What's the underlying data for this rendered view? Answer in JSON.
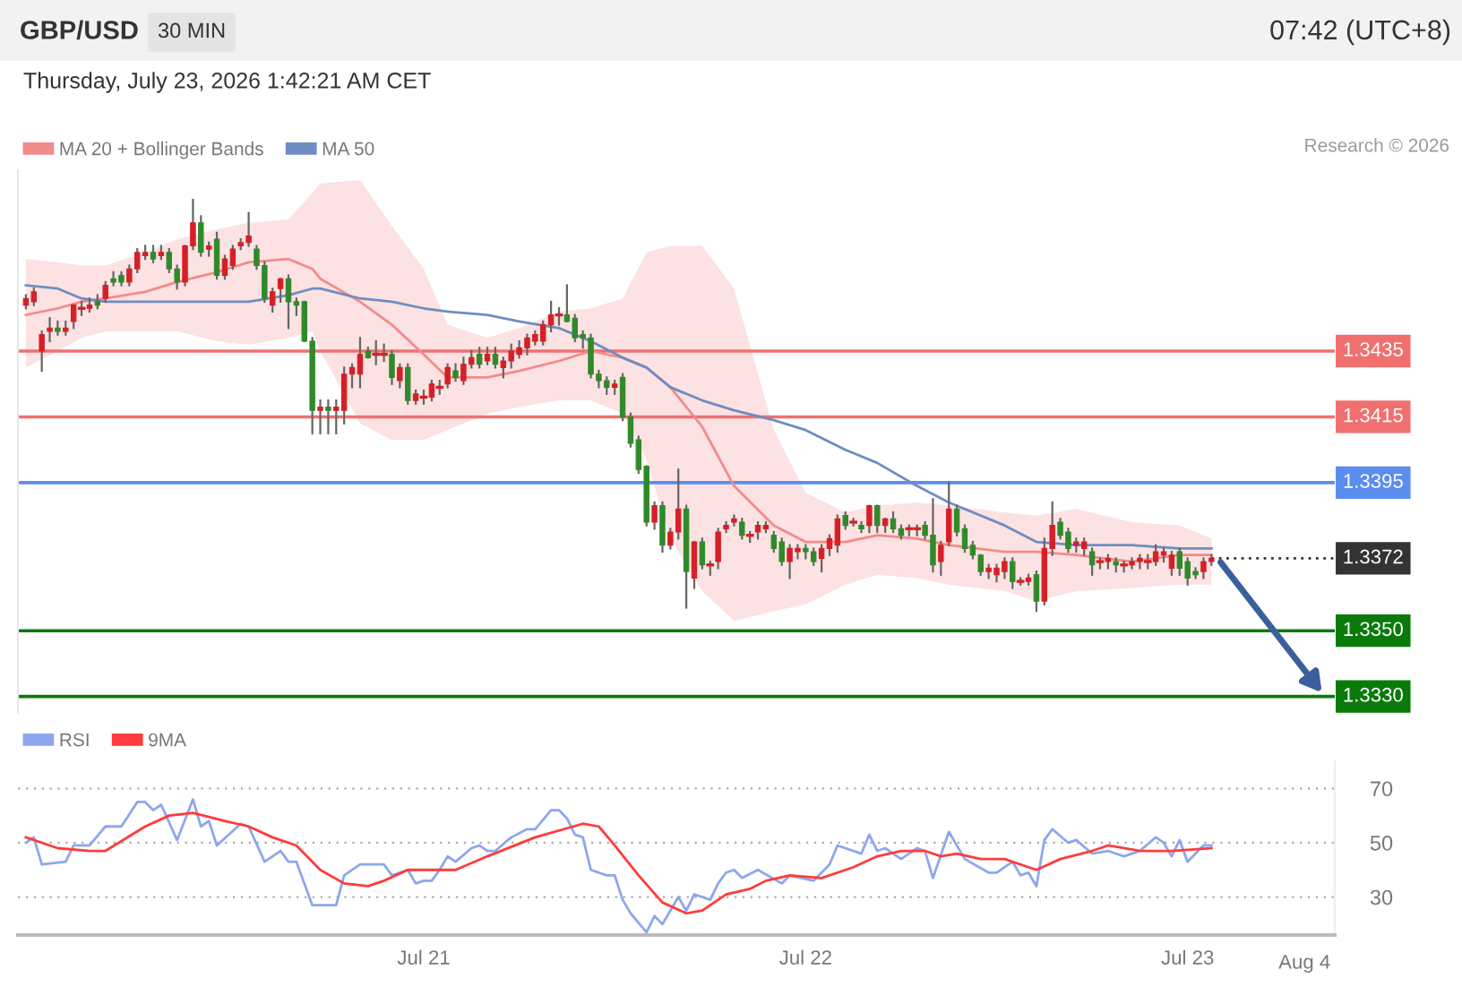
{
  "chart_data": [
    {
      "type": "candlestick",
      "title": "GBP/USD",
      "subtitle": "Thursday, July 23, 2026 1:42:21 AM CET",
      "annotations": [
        "30 MIN",
        "07:42 (UTC+8)",
        "Research © 2026"
      ],
      "x": [
        "2026-07-19T23:00",
        "2026-07-19T23:30",
        "2026-07-20T00:00",
        "2026-07-20T00:30",
        "2026-07-20T01:00",
        "2026-07-20T01:30",
        "2026-07-20T02:00",
        "2026-07-20T02:30",
        "2026-07-20T03:00",
        "2026-07-20T03:30",
        "2026-07-20T04:00",
        "2026-07-20T04:30",
        "2026-07-20T05:00",
        "2026-07-20T05:30",
        "2026-07-20T06:00",
        "2026-07-20T06:30",
        "2026-07-20T07:00",
        "2026-07-20T07:30",
        "2026-07-20T08:00",
        "2026-07-20T08:30",
        "2026-07-20T09:00",
        "2026-07-20T09:30",
        "2026-07-20T10:00",
        "2026-07-20T10:30",
        "2026-07-20T11:00",
        "2026-07-20T11:30",
        "2026-07-20T12:00",
        "2026-07-20T12:30",
        "2026-07-20T13:00",
        "2026-07-20T13:30",
        "2026-07-20T14:00",
        "2026-07-20T14:30",
        "2026-07-20T15:00",
        "2026-07-20T15:30",
        "2026-07-20T16:00",
        "2026-07-20T16:30",
        "2026-07-20T17:00",
        "2026-07-20T17:30",
        "2026-07-20T18:00",
        "2026-07-20T18:30",
        "2026-07-20T19:00",
        "2026-07-20T19:30",
        "2026-07-20T20:00",
        "2026-07-20T20:30",
        "2026-07-20T21:00",
        "2026-07-20T21:30",
        "2026-07-20T22:00",
        "2026-07-20T22:30",
        "2026-07-20T23:00",
        "2026-07-20T23:30",
        "2026-07-21T00:00",
        "2026-07-21T00:30",
        "2026-07-21T01:00",
        "2026-07-21T01:30",
        "2026-07-21T02:00",
        "2026-07-21T02:30",
        "2026-07-21T03:00",
        "2026-07-21T03:30",
        "2026-07-21T04:00",
        "2026-07-21T04:30",
        "2026-07-21T05:00",
        "2026-07-21T05:30",
        "2026-07-21T06:00",
        "2026-07-21T06:30",
        "2026-07-21T07:00",
        "2026-07-21T07:30",
        "2026-07-21T08:00",
        "2026-07-21T08:30",
        "2026-07-21T09:00",
        "2026-07-21T09:30",
        "2026-07-21T10:00",
        "2026-07-21T10:30",
        "2026-07-21T11:00",
        "2026-07-21T11:30",
        "2026-07-21T12:00",
        "2026-07-21T12:30",
        "2026-07-21T13:00",
        "2026-07-21T13:30",
        "2026-07-21T14:00",
        "2026-07-21T14:30",
        "2026-07-21T15:00",
        "2026-07-21T15:30",
        "2026-07-21T16:00",
        "2026-07-21T16:30",
        "2026-07-21T17:00",
        "2026-07-21T17:30",
        "2026-07-21T18:00",
        "2026-07-21T18:30",
        "2026-07-21T19:00",
        "2026-07-21T19:30",
        "2026-07-21T20:00",
        "2026-07-21T20:30",
        "2026-07-21T21:00",
        "2026-07-21T21:30",
        "2026-07-21T22:00",
        "2026-07-21T22:30",
        "2026-07-21T23:00",
        "2026-07-21T23:30",
        "2026-07-22T00:00",
        "2026-07-22T00:30",
        "2026-07-22T01:00",
        "2026-07-22T01:30",
        "2026-07-22T02:00",
        "2026-07-22T02:30",
        "2026-07-22T03:00",
        "2026-07-22T03:30",
        "2026-07-22T04:00",
        "2026-07-22T04:30",
        "2026-07-22T05:00",
        "2026-07-22T05:30",
        "2026-07-22T06:00",
        "2026-07-22T06:30",
        "2026-07-22T07:00",
        "2026-07-22T07:30",
        "2026-07-22T08:00",
        "2026-07-22T08:30",
        "2026-07-22T09:00",
        "2026-07-22T09:30",
        "2026-07-22T10:00",
        "2026-07-22T10:30",
        "2026-07-22T11:00",
        "2026-07-22T11:30",
        "2026-07-22T12:00",
        "2026-07-22T12:30",
        "2026-07-22T13:00",
        "2026-07-22T13:30",
        "2026-07-22T14:00",
        "2026-07-22T14:30",
        "2026-07-22T15:00",
        "2026-07-22T15:30",
        "2026-07-22T16:00",
        "2026-07-22T16:30",
        "2026-07-22T17:00",
        "2026-07-22T17:30",
        "2026-07-22T18:00",
        "2026-07-22T18:30",
        "2026-07-22T19:00",
        "2026-07-22T19:30",
        "2026-07-22T20:00",
        "2026-07-22T20:30",
        "2026-07-22T21:00",
        "2026-07-22T21:30",
        "2026-07-22T22:00",
        "2026-07-22T22:30",
        "2026-07-22T23:00",
        "2026-07-22T23:30",
        "2026-07-23T00:00",
        "2026-07-23T00:30",
        "2026-07-23T01:00",
        "2026-07-23T01:30"
      ],
      "ohlc": [
        [
          1.3449,
          1.3452,
          1.3448,
          1.3451
        ],
        [
          1.345,
          1.3454,
          1.3449,
          1.3453
        ],
        [
          1.3435,
          1.3441,
          1.3429,
          1.344
        ],
        [
          1.3441,
          1.3445,
          1.3438,
          1.3442
        ],
        [
          1.3442,
          1.3444,
          1.344,
          1.3441
        ],
        [
          1.3441,
          1.3444,
          1.344,
          1.3442
        ],
        [
          1.3444,
          1.3449,
          1.3442,
          1.3449
        ],
        [
          1.3448,
          1.345,
          1.3446,
          1.3448
        ],
        [
          1.3448,
          1.3451,
          1.3447,
          1.3449
        ],
        [
          1.345,
          1.3452,
          1.3448,
          1.3449
        ],
        [
          1.3451,
          1.3456,
          1.345,
          1.3455
        ],
        [
          1.3457,
          1.3459,
          1.3455,
          1.3456
        ],
        [
          1.3458,
          1.3459,
          1.3455,
          1.3456
        ],
        [
          1.3456,
          1.3461,
          1.3455,
          1.346
        ],
        [
          1.346,
          1.3466,
          1.3459,
          1.3465
        ],
        [
          1.3464,
          1.3467,
          1.3463,
          1.3465
        ],
        [
          1.3465,
          1.3467,
          1.3462,
          1.3463
        ],
        [
          1.3464,
          1.3467,
          1.3463,
          1.3465
        ],
        [
          1.3465,
          1.3466,
          1.3459,
          1.346
        ],
        [
          1.346,
          1.3461,
          1.3454,
          1.3456
        ],
        [
          1.3456,
          1.3467,
          1.3455,
          1.3467
        ],
        [
          1.3467,
          1.3481,
          1.3466,
          1.3474
        ],
        [
          1.3474,
          1.3476,
          1.3464,
          1.3465
        ],
        [
          1.3466,
          1.3468,
          1.3464,
          1.3467
        ],
        [
          1.3469,
          1.3471,
          1.3457,
          1.3458
        ],
        [
          1.3458,
          1.3464,
          1.3457,
          1.3463
        ],
        [
          1.3461,
          1.3467,
          1.346,
          1.3466
        ],
        [
          1.3467,
          1.3469,
          1.3466,
          1.3468
        ],
        [
          1.3468,
          1.3477,
          1.3467,
          1.347
        ],
        [
          1.3466,
          1.3467,
          1.346,
          1.3461
        ],
        [
          1.3461,
          1.3462,
          1.345,
          1.3451
        ],
        [
          1.3449,
          1.3454,
          1.3447,
          1.3453
        ],
        [
          1.3454,
          1.3457,
          1.345,
          1.3457
        ],
        [
          1.3457,
          1.3458,
          1.3442,
          1.345
        ],
        [
          1.345,
          1.3451,
          1.3446,
          1.3449
        ],
        [
          1.345,
          1.345,
          1.3438,
          1.3438
        ],
        [
          1.3438,
          1.3439,
          1.341,
          1.3417
        ],
        [
          1.3417,
          1.342,
          1.341,
          1.3418
        ],
        [
          1.3418,
          1.342,
          1.341,
          1.3417
        ],
        [
          1.3417,
          1.342,
          1.341,
          1.3418
        ],
        [
          1.3417,
          1.343,
          1.3413,
          1.3428
        ],
        [
          1.3428,
          1.3431,
          1.3424,
          1.343
        ],
        [
          1.3428,
          1.3439,
          1.3424,
          1.3434
        ],
        [
          1.3435,
          1.3436,
          1.3433,
          1.3433
        ],
        [
          1.3434,
          1.3438,
          1.3431,
          1.3434
        ],
        [
          1.3434,
          1.3437,
          1.3432,
          1.3434
        ],
        [
          1.3434,
          1.3435,
          1.3425,
          1.3427
        ],
        [
          1.3426,
          1.3431,
          1.3424,
          1.343
        ],
        [
          1.343,
          1.3431,
          1.3419,
          1.342
        ],
        [
          1.342,
          1.3423,
          1.3419,
          1.3422
        ],
        [
          1.3421,
          1.3423,
          1.3419,
          1.3421
        ],
        [
          1.3421,
          1.3426,
          1.342,
          1.3425
        ],
        [
          1.3424,
          1.3426,
          1.3422,
          1.3424
        ],
        [
          1.3425,
          1.3431,
          1.3424,
          1.343
        ],
        [
          1.3429,
          1.3431,
          1.3426,
          1.3427
        ],
        [
          1.3426,
          1.3433,
          1.3425,
          1.3431
        ],
        [
          1.3431,
          1.3435,
          1.343,
          1.3433
        ],
        [
          1.3434,
          1.3436,
          1.343,
          1.3431
        ],
        [
          1.3432,
          1.3436,
          1.3431,
          1.3434
        ],
        [
          1.3434,
          1.3436,
          1.343,
          1.3431
        ],
        [
          1.343,
          1.3433,
          1.3427,
          1.3432
        ],
        [
          1.3432,
          1.3437,
          1.343,
          1.3435
        ],
        [
          1.3434,
          1.3438,
          1.3433,
          1.3436
        ],
        [
          1.3436,
          1.344,
          1.3434,
          1.3439
        ],
        [
          1.3438,
          1.3441,
          1.3437,
          1.344
        ],
        [
          1.3438,
          1.3444,
          1.3437,
          1.3443
        ],
        [
          1.3443,
          1.345,
          1.3441,
          1.3446
        ],
        [
          1.3446,
          1.3448,
          1.3443,
          1.3446
        ],
        [
          1.3446,
          1.3455,
          1.3444,
          1.3444
        ],
        [
          1.3445,
          1.3446,
          1.3438,
          1.3439
        ],
        [
          1.344,
          1.3441,
          1.3436,
          1.3439
        ],
        [
          1.3439,
          1.344,
          1.3427,
          1.3428
        ],
        [
          1.3428,
          1.3429,
          1.3424,
          1.3426
        ],
        [
          1.3426,
          1.3427,
          1.3422,
          1.3424
        ],
        [
          1.3424,
          1.3426,
          1.3422,
          1.3425
        ],
        [
          1.3427,
          1.3428,
          1.3414,
          1.3415
        ],
        [
          1.3415,
          1.3416,
          1.3406,
          1.3407
        ],
        [
          1.3408,
          1.3409,
          1.3398,
          1.3399
        ],
        [
          1.34,
          1.34,
          1.3382,
          1.3383
        ],
        [
          1.3383,
          1.3389,
          1.3381,
          1.3388
        ],
        [
          1.3388,
          1.3389,
          1.3374,
          1.3376
        ],
        [
          1.3376,
          1.3381,
          1.3375,
          1.338
        ],
        [
          1.338,
          1.3399,
          1.3378,
          1.3387
        ],
        [
          1.3387,
          1.3388,
          1.3357,
          1.3368
        ],
        [
          1.3366,
          1.3377,
          1.3363,
          1.3377
        ],
        [
          1.3377,
          1.3378,
          1.3369,
          1.337
        ],
        [
          1.337,
          1.3371,
          1.3367,
          1.337
        ],
        [
          1.3371,
          1.3381,
          1.3369,
          1.338
        ],
        [
          1.3381,
          1.3383,
          1.338,
          1.3382
        ],
        [
          1.3383,
          1.3385,
          1.3382,
          1.3384
        ],
        [
          1.3383,
          1.3384,
          1.3378,
          1.3379
        ],
        [
          1.3379,
          1.338,
          1.3377,
          1.3379
        ],
        [
          1.338,
          1.3383,
          1.3378,
          1.3382
        ],
        [
          1.3381,
          1.3383,
          1.338,
          1.3382
        ],
        [
          1.3379,
          1.338,
          1.3374,
          1.3375
        ],
        [
          1.3377,
          1.3378,
          1.337,
          1.3371
        ],
        [
          1.3371,
          1.3376,
          1.3366,
          1.3375
        ],
        [
          1.3374,
          1.3376,
          1.3372,
          1.3375
        ],
        [
          1.3375,
          1.3376,
          1.3372,
          1.3374
        ],
        [
          1.3374,
          1.3375,
          1.337,
          1.3371
        ],
        [
          1.3372,
          1.3376,
          1.3368,
          1.3375
        ],
        [
          1.3375,
          1.3379,
          1.3373,
          1.3378
        ],
        [
          1.3376,
          1.3385,
          1.3374,
          1.3384
        ],
        [
          1.3385,
          1.3386,
          1.3381,
          1.3382
        ],
        [
          1.3383,
          1.3384,
          1.3382,
          1.3383
        ],
        [
          1.3382,
          1.3383,
          1.338,
          1.3381
        ],
        [
          1.3382,
          1.3388,
          1.338,
          1.3388
        ],
        [
          1.3388,
          1.3388,
          1.338,
          1.3382
        ],
        [
          1.3382,
          1.3384,
          1.338,
          1.3384
        ],
        [
          1.3384,
          1.3386,
          1.338,
          1.3381
        ],
        [
          1.3381,
          1.3382,
          1.3378,
          1.3379
        ],
        [
          1.3381,
          1.3382,
          1.3379,
          1.3381
        ],
        [
          1.3381,
          1.3382,
          1.3379,
          1.3381
        ],
        [
          1.3382,
          1.3383,
          1.3378,
          1.3379
        ],
        [
          1.3379,
          1.339,
          1.3368,
          1.337
        ],
        [
          1.3371,
          1.3377,
          1.3367,
          1.3376
        ],
        [
          1.3377,
          1.3395,
          1.3376,
          1.3387
        ],
        [
          1.3387,
          1.3388,
          1.3379,
          1.338
        ],
        [
          1.3381,
          1.3382,
          1.3374,
          1.3375
        ],
        [
          1.3376,
          1.3377,
          1.3372,
          1.3373
        ],
        [
          1.3373,
          1.3373,
          1.3367,
          1.3368
        ],
        [
          1.3368,
          1.337,
          1.3366,
          1.3369
        ],
        [
          1.3367,
          1.337,
          1.3365,
          1.3369
        ],
        [
          1.3368,
          1.3372,
          1.3366,
          1.3371
        ],
        [
          1.3371,
          1.3372,
          1.3363,
          1.3365
        ],
        [
          1.3365,
          1.3366,
          1.3364,
          1.3365
        ],
        [
          1.3365,
          1.3367,
          1.3364,
          1.3366
        ],
        [
          1.3367,
          1.3368,
          1.3356,
          1.3359
        ],
        [
          1.3359,
          1.3378,
          1.3358,
          1.3375
        ],
        [
          1.3375,
          1.3389,
          1.3373,
          1.3382
        ],
        [
          1.3383,
          1.3384,
          1.3378,
          1.3379
        ],
        [
          1.338,
          1.3381,
          1.3374,
          1.3375
        ],
        [
          1.3376,
          1.3378,
          1.3374,
          1.3377
        ],
        [
          1.3375,
          1.3378,
          1.3373,
          1.3377
        ],
        [
          1.3374,
          1.3375,
          1.3367,
          1.337
        ],
        [
          1.3371,
          1.3372,
          1.3369,
          1.3371
        ],
        [
          1.3371,
          1.3373,
          1.3369,
          1.3372
        ],
        [
          1.3371,
          1.3372,
          1.3368,
          1.337
        ],
        [
          1.337,
          1.3371,
          1.3368,
          1.337
        ],
        [
          1.337,
          1.3372,
          1.3369,
          1.3371
        ],
        [
          1.3371,
          1.3373,
          1.3369,
          1.3372
        ],
        [
          1.3371,
          1.3373,
          1.3369,
          1.3371
        ],
        [
          1.3371,
          1.3376,
          1.337,
          1.3374
        ],
        [
          1.3373,
          1.3375,
          1.3371,
          1.3374
        ],
        [
          1.3369,
          1.3374,
          1.3367,
          1.3373
        ],
        [
          1.3374,
          1.3375,
          1.3367,
          1.3369
        ],
        [
          1.3371,
          1.3372,
          1.3364,
          1.3366
        ],
        [
          1.3368,
          1.3369,
          1.3366,
          1.3367
        ],
        [
          1.3368,
          1.3372,
          1.3366,
          1.3371
        ],
        [
          1.3371,
          1.3373,
          1.337,
          1.3372
        ]
      ],
      "colors": [
        "#d61f26",
        "#d61f26",
        "#d61f26",
        "#d61f26",
        "#2f8a2a",
        "#d61f26",
        "#d61f26",
        "#d61f26",
        "#d61f26",
        "#2f8a2a",
        "#d61f26",
        "#2f8a2a",
        "#2f8a2a",
        "#d61f26",
        "#d61f26",
        "#d61f26",
        "#2f8a2a",
        "#d61f26",
        "#2f8a2a",
        "#2f8a2a",
        "#d61f26",
        "#d61f26",
        "#2f8a2a",
        "#d61f26",
        "#2f8a2a",
        "#d61f26",
        "#d61f26",
        "#d61f26",
        "#d61f26",
        "#2f8a2a",
        "#2f8a2a",
        "#d61f26",
        "#d61f26",
        "#2f8a2a",
        "#2f8a2a",
        "#2f8a2a",
        "#2f8a2a",
        "#d61f26",
        "#2f8a2a",
        "#d61f26",
        "#d61f26",
        "#d61f26",
        "#d61f26",
        "#2f8a2a",
        "#d61f26",
        "#d61f26",
        "#2f8a2a",
        "#d61f26",
        "#2f8a2a",
        "#d61f26",
        "#d61f26",
        "#d61f26",
        "#d61f26",
        "#d61f26",
        "#2f8a2a",
        "#d61f26",
        "#d61f26",
        "#2f8a2a",
        "#d61f26",
        "#2f8a2a",
        "#d61f26",
        "#d61f26",
        "#d61f26",
        "#d61f26",
        "#d61f26",
        "#d61f26",
        "#d61f26",
        "#d61f26",
        "#2f8a2a",
        "#2f8a2a",
        "#2f8a2a",
        "#2f8a2a",
        "#2f8a2a",
        "#2f8a2a",
        "#d61f26",
        "#2f8a2a",
        "#2f8a2a",
        "#2f8a2a",
        "#2f8a2a",
        "#d61f26",
        "#2f8a2a",
        "#d61f26",
        "#d61f26",
        "#2f8a2a",
        "#d61f26",
        "#2f8a2a",
        "#d61f26",
        "#d61f26",
        "#d61f26",
        "#d61f26",
        "#2f8a2a",
        "#d61f26",
        "#d61f26",
        "#d61f26",
        "#2f8a2a",
        "#2f8a2a",
        "#d61f26",
        "#d61f26",
        "#2f8a2a",
        "#2f8a2a",
        "#d61f26",
        "#d61f26",
        "#d61f26",
        "#2f8a2a",
        "#d61f26",
        "#2f8a2a",
        "#d61f26",
        "#2f8a2a",
        "#d61f26",
        "#2f8a2a",
        "#2f8a2a",
        "#d61f26",
        "#d61f26",
        "#2f8a2a",
        "#2f8a2a",
        "#d61f26",
        "#d61f26",
        "#2f8a2a",
        "#2f8a2a",
        "#2f8a2a",
        "#2f8a2a",
        "#d61f26",
        "#d61f26",
        "#d61f26",
        "#2f8a2a",
        "#d61f26",
        "#d61f26",
        "#2f8a2a",
        "#d61f26",
        "#d61f26",
        "#2f8a2a",
        "#2f8a2a",
        "#d61f26",
        "#d61f26",
        "#2f8a2a",
        "#d61f26",
        "#d61f26",
        "#2f8a2a",
        "#d61f26",
        "#d61f26",
        "#d61f26",
        "#d61f26",
        "#d61f26",
        "#d61f26",
        "#d61f26",
        "#2f8a2a",
        "#2f8a2a",
        "#2f8a2a",
        "#d61f26",
        "#d61f26"
      ],
      "series": [
        {
          "name": "MA 20 + Bollinger Bands",
          "type": "line",
          "color": "#f28b8b",
          "x": [
            "2026-07-19T23:00",
            "2026-07-20T01:00",
            "2026-07-20T02:30",
            "2026-07-20T04:00",
            "2026-07-20T06:30",
            "2026-07-20T08:30",
            "2026-07-20T11:00",
            "2026-07-20T13:00",
            "2026-07-20T15:30",
            "2026-07-20T17:00",
            "2026-07-20T17:30",
            "2026-07-20T20:00",
            "2026-07-20T22:00",
            "2026-07-21T00:00",
            "2026-07-21T01:30",
            "2026-07-21T04:00",
            "2026-07-21T06:00",
            "2026-07-21T08:30",
            "2026-07-21T10:30",
            "2026-07-21T12:30",
            "2026-07-21T14:00",
            "2026-07-21T15:30",
            "2026-07-21T17:30",
            "2026-07-21T19:30",
            "2026-07-21T22:00",
            "2026-07-22T00:00",
            "2026-07-22T02:30",
            "2026-07-22T04:30",
            "2026-07-22T07:00",
            "2026-07-22T09:00",
            "2026-07-22T12:30",
            "2026-07-22T14:30",
            "2026-07-22T17:00",
            "2026-07-22T20:30",
            "2026-07-22T23:30",
            "2026-07-23T01:30"
          ],
          "values": [
            1.3446,
            1.3448,
            1.345,
            1.3451,
            1.3453,
            1.3456,
            1.3459,
            1.3462,
            1.3463,
            1.346,
            1.3457,
            1.345,
            1.3443,
            1.3434,
            1.3427,
            1.3427,
            1.3429,
            1.3432,
            1.3435,
            1.3433,
            1.343,
            1.3424,
            1.3412,
            1.3394,
            1.3382,
            1.3377,
            1.3377,
            1.3379,
            1.3378,
            1.3376,
            1.3374,
            1.3374,
            1.3373,
            1.3371,
            1.3373,
            1.3373
          ],
          "upper": [
            1.3463,
            1.3462,
            1.3461,
            1.3461,
            1.3465,
            1.3469,
            1.3472,
            1.3474,
            1.3475,
            1.3483,
            1.3486,
            1.3487,
            1.3473,
            1.346,
            1.3443,
            1.3439,
            1.3442,
            1.3447,
            1.3448,
            1.3451,
            1.3465,
            1.3467,
            1.3467,
            1.3454,
            1.3411,
            1.3392,
            1.3386,
            1.3388,
            1.3389,
            1.3388,
            1.3386,
            1.3385,
            1.3387,
            1.3383,
            1.3382,
            1.3378
          ],
          "lower": [
            1.343,
            1.3435,
            1.3439,
            1.3441,
            1.3441,
            1.3441,
            1.3438,
            1.3437,
            1.3439,
            1.3441,
            1.3435,
            1.3413,
            1.3408,
            1.3408,
            1.3411,
            1.3416,
            1.3418,
            1.342,
            1.342,
            1.3416,
            1.3402,
            1.3378,
            1.3362,
            1.3353,
            1.3356,
            1.3358,
            1.3364,
            1.3367,
            1.3366,
            1.3364,
            1.3362,
            1.3359,
            1.3362,
            1.3363,
            1.3364,
            1.3364
          ]
        },
        {
          "name": "MA 50",
          "type": "line",
          "color": "#6f8cc4",
          "x": [
            "2026-07-19T23:00",
            "2026-07-20T01:00",
            "2026-07-20T02:30",
            "2026-07-20T04:00",
            "2026-07-20T06:30",
            "2026-07-20T08:30",
            "2026-07-20T11:00",
            "2026-07-20T13:00",
            "2026-07-20T15:30",
            "2026-07-20T17:00",
            "2026-07-20T17:30",
            "2026-07-20T20:00",
            "2026-07-20T22:00",
            "2026-07-21T00:00",
            "2026-07-21T01:30",
            "2026-07-21T04:00",
            "2026-07-21T06:00",
            "2026-07-21T08:30",
            "2026-07-21T10:30",
            "2026-07-21T12:30",
            "2026-07-21T14:00",
            "2026-07-21T15:30",
            "2026-07-21T17:30",
            "2026-07-21T19:30",
            "2026-07-21T22:00",
            "2026-07-22T00:00",
            "2026-07-22T02:30",
            "2026-07-22T04:30",
            "2026-07-22T07:00",
            "2026-07-22T09:00",
            "2026-07-22T12:30",
            "2026-07-22T14:30",
            "2026-07-22T17:00",
            "2026-07-22T20:30",
            "2026-07-22T23:30",
            "2026-07-23T01:30"
          ],
          "values": [
            1.3455,
            1.3454,
            1.3451,
            1.345,
            1.345,
            1.345,
            1.345,
            1.345,
            1.3452,
            1.3454,
            1.3454,
            1.3451,
            1.345,
            1.3448,
            1.3447,
            1.3446,
            1.3444,
            1.3442,
            1.3438,
            1.3433,
            1.343,
            1.3424,
            1.342,
            1.3417,
            1.3414,
            1.3411,
            1.3405,
            1.3401,
            1.3394,
            1.3389,
            1.3382,
            1.3377,
            1.3376,
            1.3376,
            1.3375,
            1.3375
          ]
        }
      ],
      "xlim": [
        "2026-07-19T22:30",
        "2026-07-23T09:15"
      ],
      "ylim": [
        1.3325,
        1.349
      ],
      "ref_lines": [
        {
          "axis": "y",
          "value": 1.3435,
          "label": "1.3435",
          "color": "#f07070"
        },
        {
          "axis": "y",
          "value": 1.3415,
          "label": "1.3415",
          "color": "#f07070"
        },
        {
          "axis": "y",
          "value": 1.3395,
          "label": "1.3395",
          "color": "#5b8def"
        },
        {
          "axis": "y",
          "value": 1.3372,
          "label": "1.3372",
          "color": "#333333",
          "line_style": "dotted"
        },
        {
          "axis": "y",
          "value": 1.335,
          "label": "1.3350",
          "color": "#0b7a0b"
        },
        {
          "axis": "y",
          "value": 1.333,
          "label": "1.3330",
          "color": "#0b7a0b"
        }
      ],
      "legend": "top left",
      "tick_labels": false,
      "grid": false
    },
    {
      "type": "line",
      "series": [
        {
          "name": "RSI",
          "color": "#8ea6ee",
          "x": [
            "2026-07-19T23:00",
            "2026-07-19T23:30",
            "2026-07-20T00:00",
            "2026-07-20T01:30",
            "2026-07-20T02:00",
            "2026-07-20T03:00",
            "2026-07-20T04:00",
            "2026-07-20T05:00",
            "2026-07-20T06:00",
            "2026-07-20T06:30",
            "2026-07-20T07:00",
            "2026-07-20T07:30",
            "2026-07-20T08:30",
            "2026-07-20T09:30",
            "2026-07-20T10:00",
            "2026-07-20T10:30",
            "2026-07-20T11:00",
            "2026-07-20T12:30",
            "2026-07-20T13:00",
            "2026-07-20T14:00",
            "2026-07-20T15:00",
            "2026-07-20T15:30",
            "2026-07-20T16:00",
            "2026-07-20T17:00",
            "2026-07-20T18:30",
            "2026-07-20T19:00",
            "2026-07-20T20:00",
            "2026-07-20T21:30",
            "2026-07-20T22:00",
            "2026-07-20T23:00",
            "2026-07-20T23:30",
            "2026-07-21T00:00",
            "2026-07-21T00:30",
            "2026-07-21T01:00",
            "2026-07-21T01:30",
            "2026-07-21T02:00",
            "2026-07-21T03:00",
            "2026-07-21T03:30",
            "2026-07-21T04:00",
            "2026-07-21T04:30",
            "2026-07-21T05:30",
            "2026-07-21T06:30",
            "2026-07-21T07:00",
            "2026-07-21T08:00",
            "2026-07-21T08:30",
            "2026-07-21T09:00",
            "2026-07-21T09:30",
            "2026-07-21T10:00",
            "2026-07-21T10:30",
            "2026-07-21T11:30",
            "2026-07-21T12:00",
            "2026-07-21T12:30",
            "2026-07-21T13:00",
            "2026-07-21T14:00",
            "2026-07-21T14:30",
            "2026-07-21T15:00",
            "2026-07-21T16:00",
            "2026-07-21T16:30",
            "2026-07-21T17:00",
            "2026-07-21T18:00",
            "2026-07-21T18:30",
            "2026-07-21T19:00",
            "2026-07-21T19:30",
            "2026-07-21T20:00",
            "2026-07-21T21:00",
            "2026-07-21T22:30",
            "2026-07-21T23:00",
            "2026-07-22T00:30",
            "2026-07-22T01:30",
            "2026-07-22T02:00",
            "2026-07-22T03:30",
            "2026-07-22T04:00",
            "2026-07-22T04:30",
            "2026-07-22T05:00",
            "2026-07-22T06:00",
            "2026-07-22T07:00",
            "2026-07-22T07:30",
            "2026-07-22T08:00",
            "2026-07-22T09:00",
            "2026-07-22T10:00",
            "2026-07-22T11:30",
            "2026-07-22T12:00",
            "2026-07-22T13:00",
            "2026-07-22T13:30",
            "2026-07-22T14:00",
            "2026-07-22T14:30",
            "2026-07-22T15:00",
            "2026-07-22T15:30",
            "2026-07-22T16:30",
            "2026-07-22T17:00",
            "2026-07-22T18:00",
            "2026-07-22T19:00",
            "2026-07-22T20:00",
            "2026-07-22T21:00",
            "2026-07-22T22:00",
            "2026-07-22T22:30",
            "2026-07-22T23:00",
            "2026-07-22T23:30",
            "2026-07-23T00:00",
            "2026-07-23T00:30",
            "2026-07-23T01:00",
            "2026-07-23T01:30"
          ],
          "values": [
            50,
            52,
            42,
            43,
            49,
            49,
            56,
            56,
            65,
            65,
            62,
            64,
            51,
            66,
            56,
            58,
            49,
            57,
            56,
            43,
            47,
            43,
            43,
            27,
            27,
            38,
            42,
            42,
            38,
            40,
            35,
            36,
            36,
            40,
            45,
            43,
            48,
            49,
            47,
            47,
            52,
            55,
            55,
            62,
            62,
            59,
            53,
            52,
            40,
            38,
            38,
            29,
            24,
            17,
            23,
            20,
            30,
            25,
            31,
            29,
            35,
            39,
            40,
            37,
            40,
            35,
            38,
            36,
            42,
            49,
            46,
            53,
            47,
            48,
            44,
            48,
            47,
            37,
            54,
            44,
            39,
            39,
            43,
            38,
            39,
            34,
            51,
            55,
            50,
            51,
            46,
            47,
            45,
            47,
            52,
            50,
            45,
            51,
            43,
            46,
            49,
            49
          ]
        },
        {
          "name": "9MA",
          "color": "#ff3b3b",
          "x": [
            "2026-07-19T23:00",
            "2026-07-20T01:00",
            "2026-07-20T03:00",
            "2026-07-20T04:00",
            "2026-07-20T06:30",
            "2026-07-20T08:00",
            "2026-07-20T09:30",
            "2026-07-20T11:30",
            "2026-07-20T13:00",
            "2026-07-20T14:30",
            "2026-07-20T16:00",
            "2026-07-20T17:30",
            "2026-07-20T19:00",
            "2026-07-20T20:30",
            "2026-07-20T21:30",
            "2026-07-20T23:00",
            "2026-07-21T02:00",
            "2026-07-21T04:00",
            "2026-07-21T07:00",
            "2026-07-21T10:00",
            "2026-07-21T11:00",
            "2026-07-21T12:00",
            "2026-07-21T13:30",
            "2026-07-21T15:00",
            "2026-07-21T16:30",
            "2026-07-21T17:30",
            "2026-07-21T19:00",
            "2026-07-21T20:30",
            "2026-07-21T21:30",
            "2026-07-21T23:00",
            "2026-07-22T01:00",
            "2026-07-22T03:00",
            "2026-07-22T04:30",
            "2026-07-22T06:00",
            "2026-07-22T07:30",
            "2026-07-22T08:30",
            "2026-07-22T09:30",
            "2026-07-22T11:00",
            "2026-07-22T12:30",
            "2026-07-22T14:30",
            "2026-07-22T16:00",
            "2026-07-22T18:00",
            "2026-07-22T19:00",
            "2026-07-22T21:00",
            "2026-07-22T23:00",
            "2026-07-23T01:30"
          ],
          "values": [
            52,
            48,
            47,
            47,
            56,
            60,
            61,
            58,
            56,
            52,
            49,
            40,
            35,
            34,
            36,
            40,
            40,
            45,
            52,
            57,
            56,
            49,
            38,
            28,
            24,
            25,
            31,
            33,
            36,
            38,
            37,
            41,
            45,
            47,
            47,
            45,
            46,
            44,
            44,
            40,
            44,
            47,
            49,
            47,
            47,
            48
          ]
        }
      ],
      "xlim": [
        "2026-07-19T22:30",
        "2026-07-23T09:15"
      ],
      "xticks": [
        {
          "value": "2026-07-21",
          "label": "Jul 21"
        },
        {
          "value": "2026-07-22",
          "label": "Jul 22"
        },
        {
          "value": "2026-07-23",
          "label": "Jul 23"
        }
      ],
      "annotations": [
        "Aug 4"
      ],
      "ylim": [
        16,
        80
      ],
      "yticks": [
        30,
        50,
        70
      ],
      "grid": "y",
      "legend": "top left"
    }
  ]
}
